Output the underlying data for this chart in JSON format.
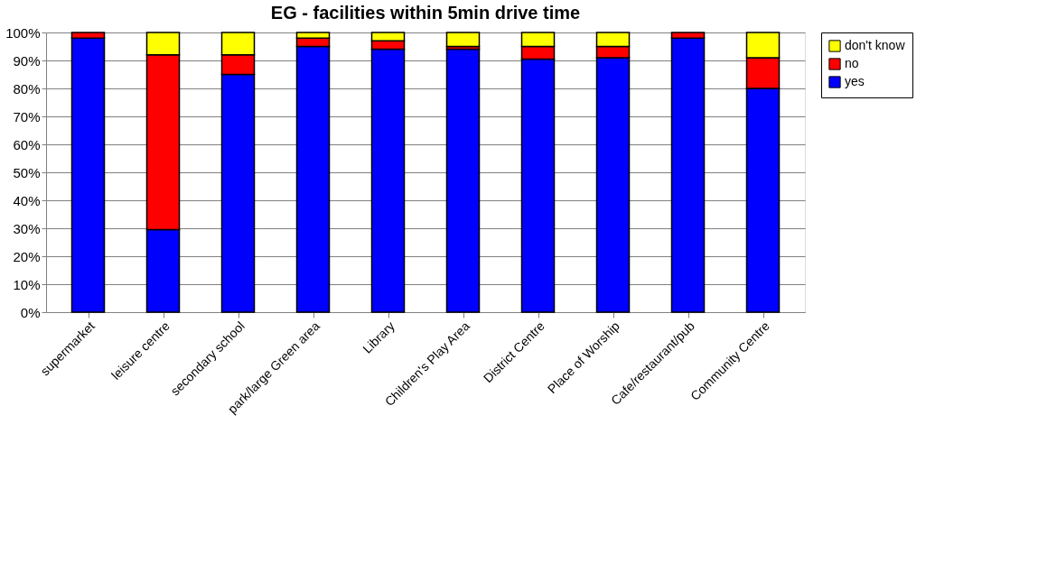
{
  "chart_data": {
    "type": "bar",
    "title": "EG - facilities within 5min drive time",
    "stacked": true,
    "categories": [
      "supermarket",
      "leisure centre",
      "secondary school",
      "park/large Green area",
      "Library",
      "Children's Play Area",
      "District Centre",
      "Place of Worship",
      "Cafe/restaurant/pub",
      "Community Centre"
    ],
    "series": [
      {
        "name": "yes",
        "color": "#0000ff",
        "values": [
          98,
          29.5,
          85,
          95,
          94,
          94,
          90.5,
          91,
          98,
          80
        ]
      },
      {
        "name": "no",
        "color": "#ff0000",
        "values": [
          2,
          62.5,
          7,
          3,
          3,
          1,
          4.5,
          4,
          2,
          11
        ]
      },
      {
        "name": "don't know",
        "color": "#ffff00",
        "values": [
          null,
          8,
          8,
          2,
          3,
          5,
          5,
          5,
          null,
          9
        ]
      }
    ],
    "ylim": [
      0,
      100
    ],
    "yticks": [
      {
        "value": 0,
        "label": "0%"
      },
      {
        "value": 10,
        "label": "10%"
      },
      {
        "value": 20,
        "label": "20%"
      },
      {
        "value": 30,
        "label": "30%"
      },
      {
        "value": 40,
        "label": "40%"
      },
      {
        "value": 50,
        "label": "50%"
      },
      {
        "value": 60,
        "label": "60%"
      },
      {
        "value": 70,
        "label": "70%"
      },
      {
        "value": 80,
        "label": "80%"
      },
      {
        "value": 90,
        "label": "90%"
      },
      {
        "value": 100,
        "label": "100%"
      }
    ],
    "grid": "y",
    "legend": "right"
  }
}
